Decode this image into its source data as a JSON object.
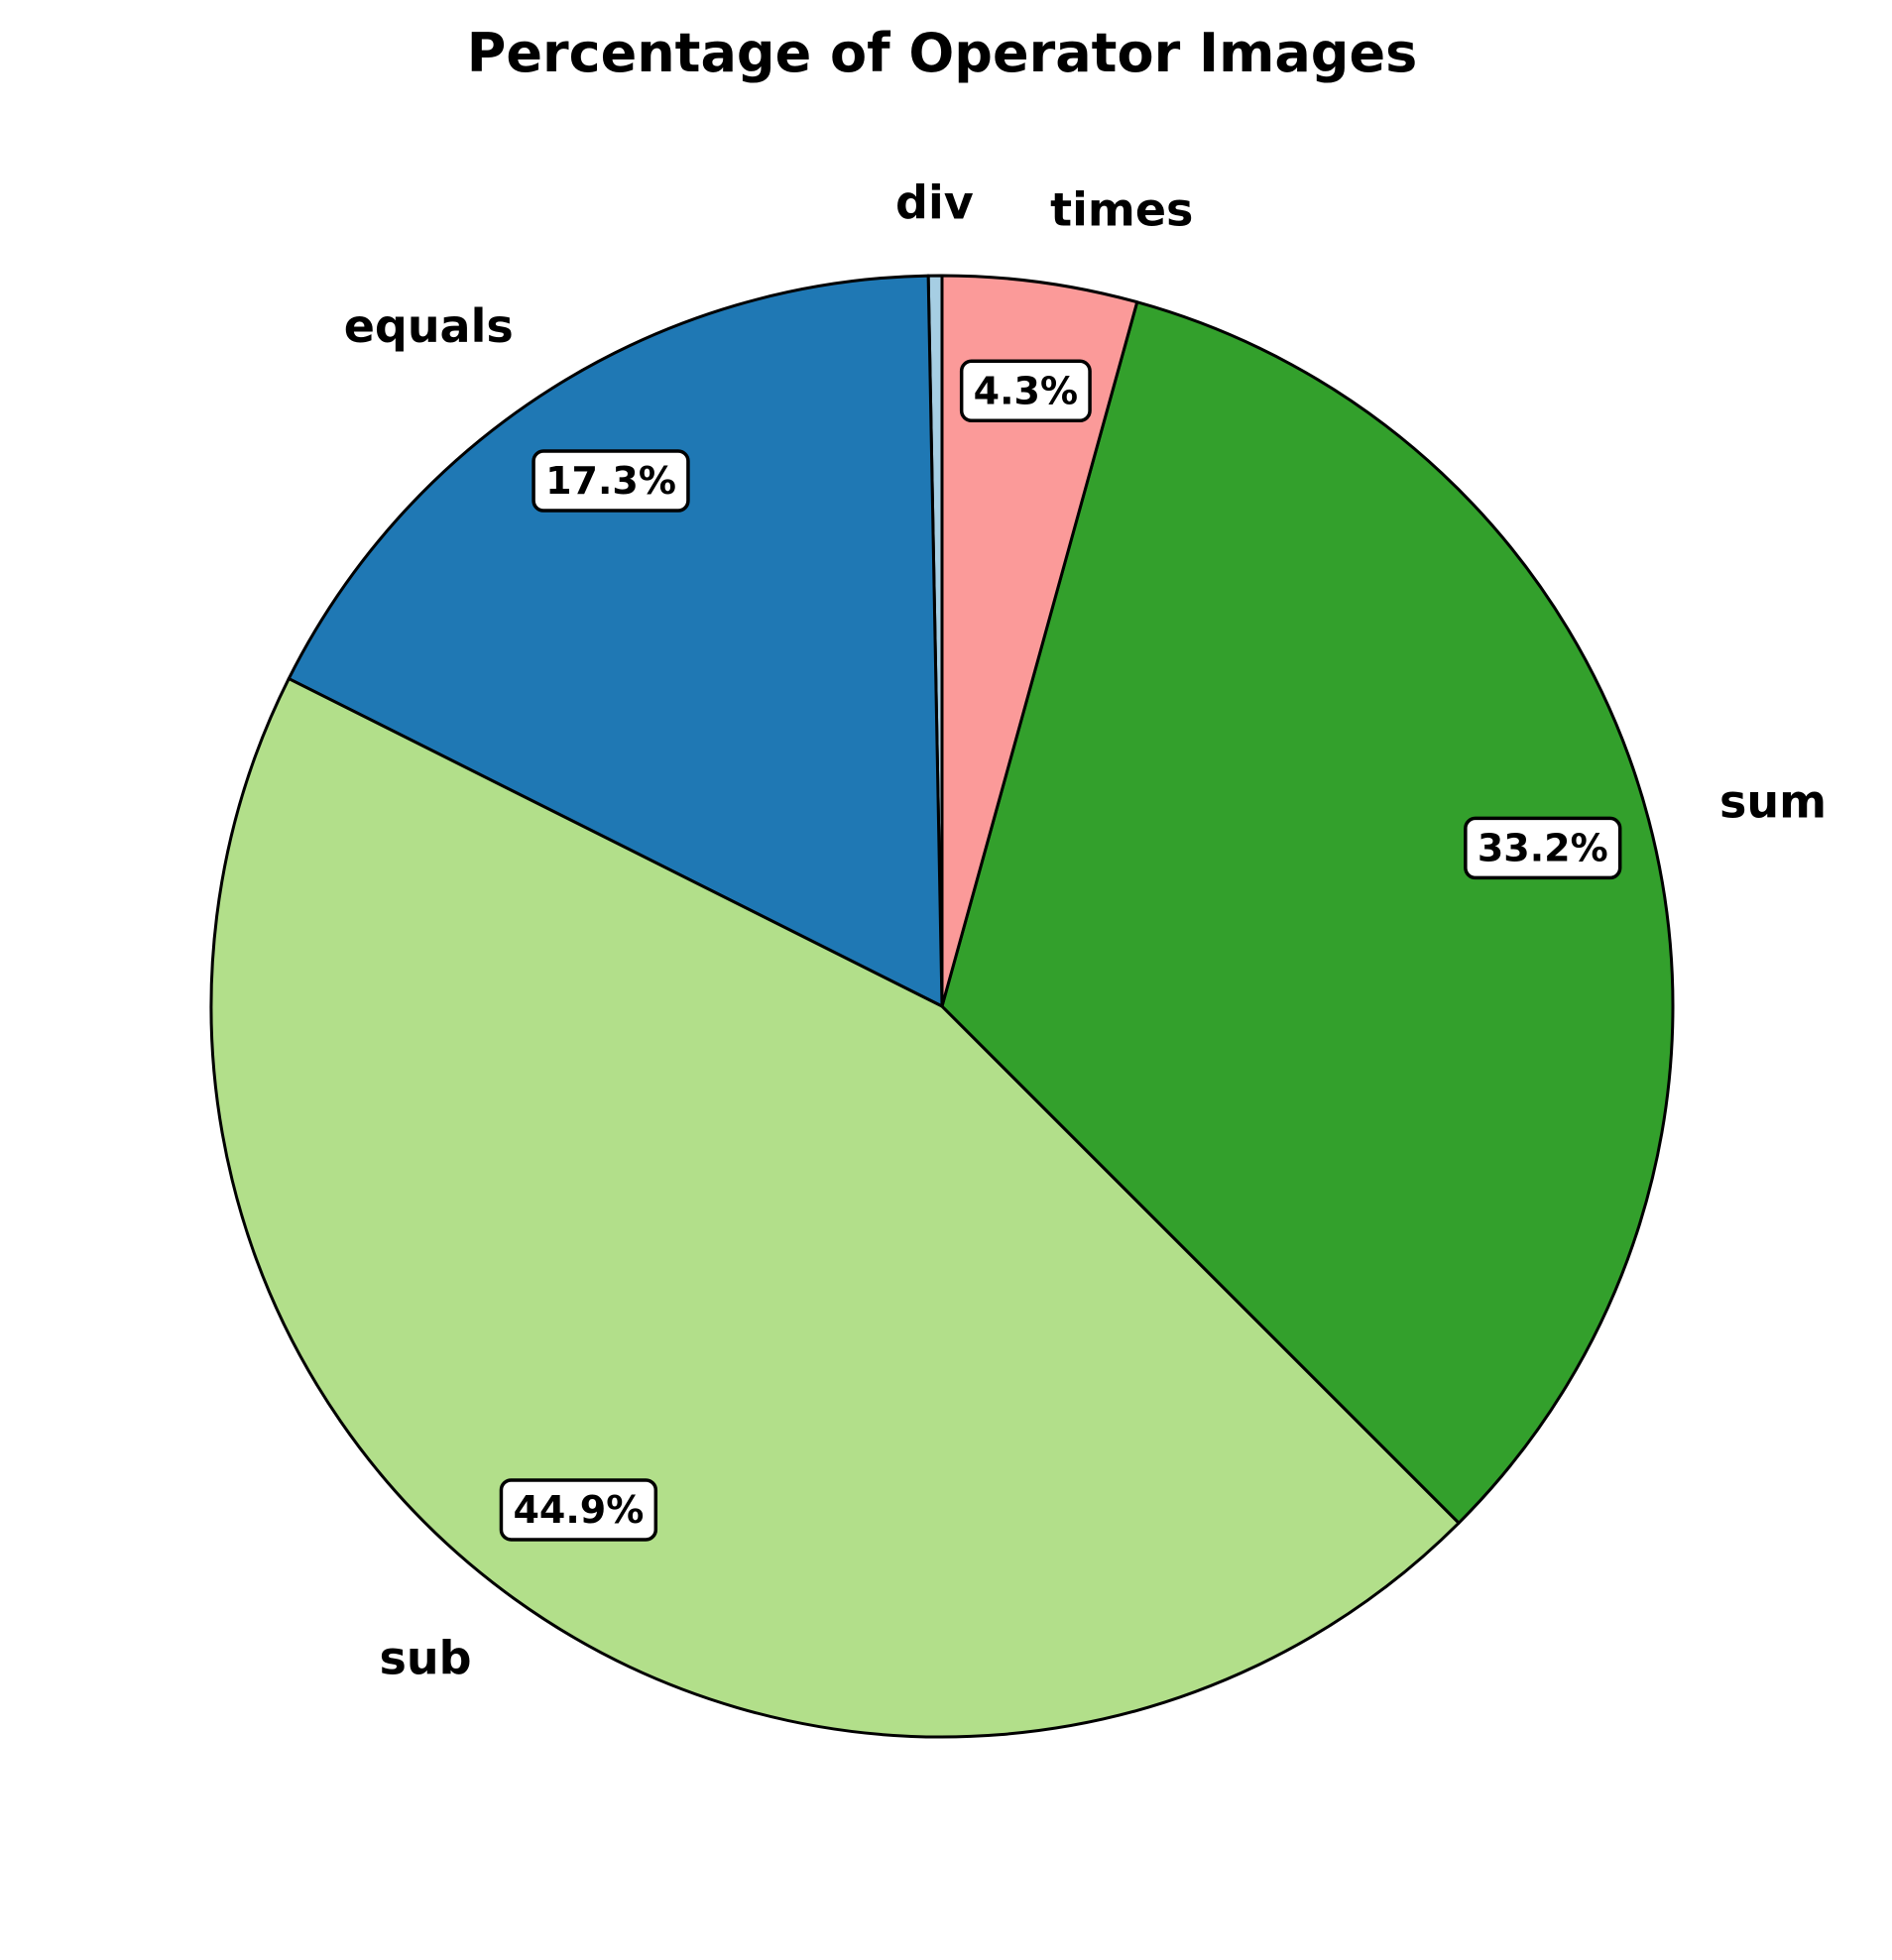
{
  "chart_data": {
    "type": "pie",
    "title": "Percentage of Operator Images",
    "start_angle": "90 degrees (top), counter-clockwise",
    "slices": [
      {
        "label": "div",
        "value": 0.3,
        "pct_label": "",
        "color": "#a6cee3"
      },
      {
        "label": "equals",
        "value": 17.3,
        "pct_label": "17.3%",
        "color": "#1f78b4"
      },
      {
        "label": "sub",
        "value": 44.9,
        "pct_label": "44.9%",
        "color": "#b2df8a"
      },
      {
        "label": "sum",
        "value": 33.2,
        "pct_label": "33.2%",
        "color": "#33a02c"
      },
      {
        "label": "times",
        "value": 4.3,
        "pct_label": "4.3%",
        "color": "#fb9a99"
      }
    ]
  }
}
